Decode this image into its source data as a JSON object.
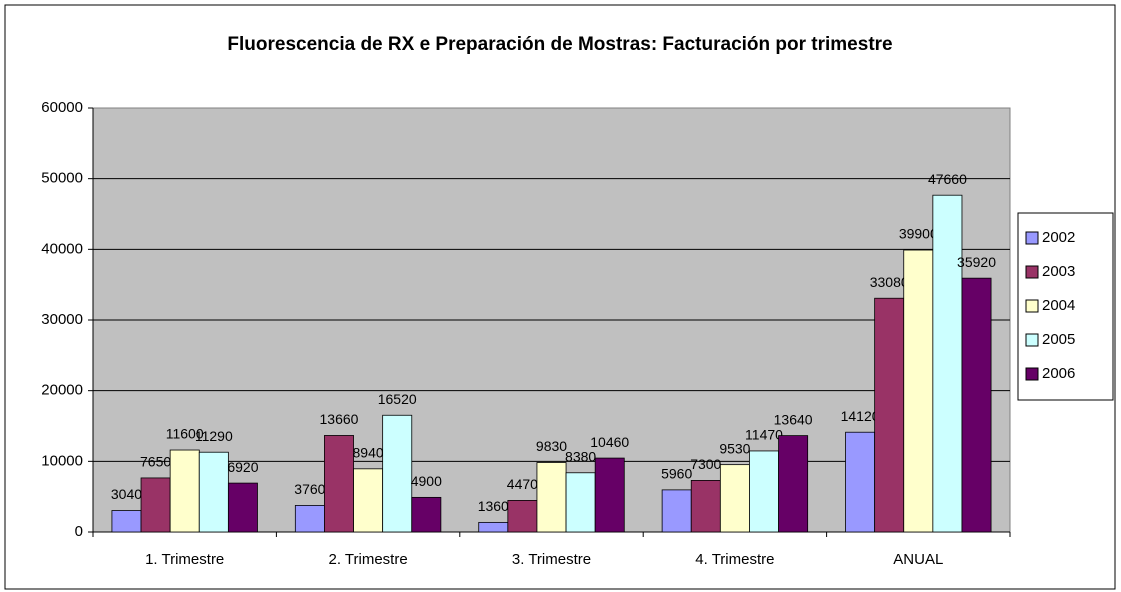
{
  "chart_data": {
    "type": "bar",
    "title": "Fluorescencia de RX e Preparación de Mostras: Facturación por trimestre",
    "categories": [
      "1. Trimestre",
      "2. Trimestre",
      "3. Trimestre",
      "4. Trimestre",
      "ANUAL"
    ],
    "series": [
      {
        "name": "2002",
        "color": "#9999ff",
        "values": [
          3040,
          3760,
          1360,
          5960,
          14120
        ]
      },
      {
        "name": "2003",
        "color": "#993366",
        "values": [
          7650,
          13660,
          4470,
          7300,
          33080
        ]
      },
      {
        "name": "2004",
        "color": "#ffffcc",
        "values": [
          11600,
          8940,
          9830,
          9530,
          39900
        ]
      },
      {
        "name": "2005",
        "color": "#ccffff",
        "values": [
          11290,
          16520,
          8380,
          11470,
          47660
        ]
      },
      {
        "name": "2006",
        "color": "#660066",
        "values": [
          6920,
          4900,
          10460,
          13640,
          35920
        ]
      }
    ],
    "ylim": [
      0,
      60000
    ],
    "yticks": [
      0,
      10000,
      20000,
      30000,
      40000,
      50000,
      60000
    ],
    "grid": true,
    "legend": "right"
  }
}
